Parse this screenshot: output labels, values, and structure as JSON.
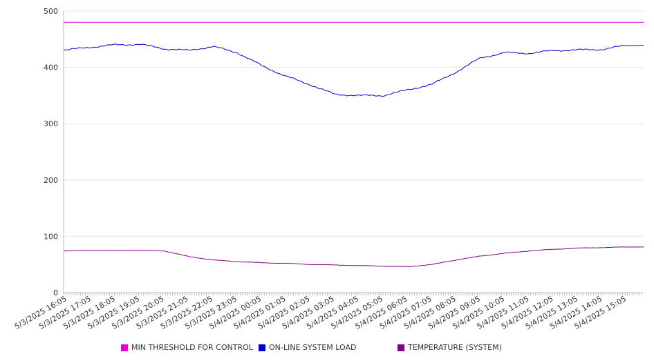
{
  "chart_data": {
    "type": "line",
    "title": "",
    "xlabel": "",
    "ylabel": "",
    "ylim": [
      0,
      500
    ],
    "yticks": [
      0,
      100,
      200,
      300,
      400,
      500
    ],
    "grid": true,
    "legend_position": "bottom",
    "categories": [
      "5/3/2025 16:05",
      "5/3/2025 17:05",
      "5/3/2025 18:05",
      "5/3/2025 19:05",
      "5/3/2025 20:05",
      "5/3/2025 21:05",
      "5/3/2025 22:05",
      "5/3/2025 23:05",
      "5/4/2025 00:05",
      "5/4/2025 01:05",
      "5/4/2025 02:05",
      "5/4/2025 03:05",
      "5/4/2025 04:05",
      "5/4/2025 05:05",
      "5/4/2025 06:05",
      "5/4/2025 07:05",
      "5/4/2025 08:05",
      "5/4/2025 09:05",
      "5/4/2025 10:05",
      "5/4/2025 11:05",
      "5/4/2025 12:05",
      "5/4/2025 13:05",
      "5/4/2025 14:05",
      "5/4/2025 15:05"
    ],
    "series": [
      {
        "name": "MIN THRESHOLD FOR CONTROL",
        "color": "#dd00dd",
        "values": [
          480,
          480,
          480,
          480,
          480,
          480,
          480,
          480,
          480,
          480,
          480,
          480,
          480,
          480,
          480,
          480,
          480,
          480,
          480,
          480,
          480,
          480,
          480,
          480
        ]
      },
      {
        "name": "ON-LINE SYSTEM LOAD",
        "color": "#0000cc",
        "values": [
          431,
          436,
          440,
          441,
          433,
          430,
          437,
          426,
          403,
          384,
          369,
          352,
          350,
          350,
          360,
          370,
          392,
          417,
          426,
          425,
          430,
          431,
          432,
          439
        ]
      },
      {
        "name": "TEMPERATURE (SYSTEM)",
        "color": "#800080",
        "values": [
          74,
          75,
          75,
          75,
          74,
          64,
          58,
          55,
          53,
          52,
          50,
          49,
          48,
          47,
          46,
          50,
          58,
          65,
          70,
          74,
          77,
          79,
          80,
          81
        ]
      }
    ]
  }
}
